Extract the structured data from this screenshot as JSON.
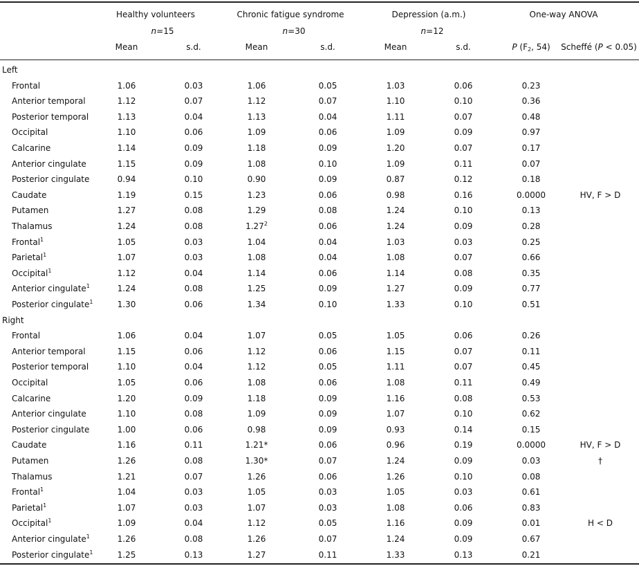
{
  "header": {
    "groups": [
      {
        "title": "Healthy volunteers",
        "n": {
          "symbol": "n",
          "value": "=15"
        }
      },
      {
        "title": "Chronic fatigue syndrome",
        "n": {
          "symbol": "n",
          "value": "=30"
        }
      },
      {
        "title": "Depression (a.m.)",
        "n": {
          "symbol": "n",
          "value": "=12"
        }
      },
      {
        "title": "One-way ANOVA"
      }
    ],
    "columns": [
      "Mean",
      "s.d.",
      "Mean",
      "s.d.",
      "Mean",
      "s.d."
    ],
    "p_column": {
      "symbol": "P",
      "open": " (F",
      "sub": "2",
      "close": ", 54)"
    },
    "scheffe_column": {
      "text": "Scheffé (",
      "symbol": "P",
      "close": " < 0.05)"
    }
  },
  "sections": [
    {
      "label": "Left",
      "rows": [
        {
          "region": "Frontal",
          "cells": [
            "1.06",
            "0.03",
            "1.06",
            "0.05",
            "1.03",
            "0.06",
            "0.23"
          ]
        },
        {
          "region": "Anterior temporal",
          "cells": [
            "1.12",
            "0.07",
            "1.12",
            "0.07",
            "1.10",
            "0.10",
            "0.36"
          ]
        },
        {
          "region": "Posterior temporal",
          "cells": [
            "1.13",
            "0.04",
            "1.13",
            "0.04",
            "1.11",
            "0.07",
            "0.48"
          ]
        },
        {
          "region": "Occipital",
          "cells": [
            "1.10",
            "0.06",
            "1.09",
            "0.06",
            "1.09",
            "0.09",
            "0.97"
          ]
        },
        {
          "region": "Calcarine",
          "cells": [
            "1.14",
            "0.09",
            "1.18",
            "0.09",
            "1.20",
            "0.07",
            "0.17"
          ]
        },
        {
          "region": "Anterior cingulate",
          "cells": [
            "1.15",
            "0.09",
            "1.08",
            "0.10",
            "1.09",
            "0.11",
            "0.07"
          ]
        },
        {
          "region": "Posterior cingulate",
          "cells": [
            "0.94",
            "0.10",
            "0.90",
            "0.09",
            "0.87",
            "0.12",
            "0.18"
          ]
        },
        {
          "region": "Caudate",
          "cells": [
            "1.19",
            "0.15",
            "1.23",
            "0.06",
            "0.98",
            "0.16",
            "0.0000"
          ],
          "scheffe": "HV, F > D"
        },
        {
          "region": "Putamen",
          "cells": [
            "1.27",
            "0.08",
            "1.29",
            "0.08",
            "1.24",
            "0.10",
            "0.13"
          ]
        },
        {
          "region": "Thalamus",
          "cells": [
            "1.24",
            "0.08",
            {
              "text": "1.27",
              "note": "2"
            },
            "0.06",
            "1.24",
            "0.09",
            "0.28"
          ]
        },
        {
          "region": "Frontal",
          "note": "1",
          "cells": [
            "1.05",
            "0.03",
            "1.04",
            "0.04",
            "1.03",
            "0.03",
            "0.25"
          ]
        },
        {
          "region": "Parietal",
          "note": "1",
          "cells": [
            "1.07",
            "0.03",
            "1.08",
            "0.04",
            "1.08",
            "0.07",
            "0.66"
          ]
        },
        {
          "region": "Occipital",
          "note": "1",
          "cells": [
            "1.12",
            "0.04",
            "1.14",
            "0.06",
            "1.14",
            "0.08",
            "0.35"
          ]
        },
        {
          "region": "Anterior cingulate",
          "note": "1",
          "cells": [
            "1.24",
            "0.08",
            "1.25",
            "0.09",
            "1.27",
            "0.09",
            "0.77"
          ]
        },
        {
          "region": "Posterior cingulate",
          "note": "1",
          "cells": [
            "1.30",
            "0.06",
            "1.34",
            "0.10",
            "1.33",
            "0.10",
            "0.51"
          ]
        }
      ]
    },
    {
      "label": "Right",
      "rows": [
        {
          "region": "Frontal",
          "cells": [
            "1.06",
            "0.04",
            "1.07",
            "0.05",
            "1.05",
            "0.06",
            "0.26"
          ]
        },
        {
          "region": "Anterior temporal",
          "cells": [
            "1.15",
            "0.06",
            "1.12",
            "0.06",
            "1.15",
            "0.07",
            "0.11"
          ]
        },
        {
          "region": "Posterior temporal",
          "cells": [
            "1.10",
            "0.04",
            "1.12",
            "0.05",
            "1.11",
            "0.07",
            "0.45"
          ]
        },
        {
          "region": "Occipital",
          "cells": [
            "1.05",
            "0.06",
            "1.08",
            "0.06",
            "1.08",
            "0.11",
            "0.49"
          ]
        },
        {
          "region": "Calcarine",
          "cells": [
            "1.20",
            "0.09",
            "1.18",
            "0.09",
            "1.16",
            "0.08",
            "0.53"
          ]
        },
        {
          "region": "Anterior cingulate",
          "cells": [
            "1.10",
            "0.08",
            "1.09",
            "0.09",
            "1.07",
            "0.10",
            "0.62"
          ]
        },
        {
          "region": "Posterior cingulate",
          "cells": [
            "1.00",
            "0.06",
            "0.98",
            "0.09",
            "0.93",
            "0.14",
            "0.15"
          ]
        },
        {
          "region": "Caudate",
          "cells": [
            "1.16",
            "0.11",
            "1.21*",
            "0.06",
            "0.96",
            "0.19",
            "0.0000"
          ],
          "scheffe": "HV, F > D"
        },
        {
          "region": "Putamen",
          "cells": [
            "1.26",
            "0.08",
            "1.30*",
            "0.07",
            "1.24",
            "0.09",
            "0.03"
          ],
          "scheffe": "†"
        },
        {
          "region": "Thalamus",
          "cells": [
            "1.21",
            "0.07",
            "1.26",
            "0.06",
            "1.26",
            "0.10",
            "0.08"
          ]
        },
        {
          "region": "Frontal",
          "note": "1",
          "cells": [
            "1.04",
            "0.03",
            "1.05",
            "0.03",
            "1.05",
            "0.03",
            "0.61"
          ]
        },
        {
          "region": "Parietal",
          "note": "1",
          "cells": [
            "1.07",
            "0.03",
            "1.07",
            "0.03",
            "1.08",
            "0.06",
            "0.83"
          ]
        },
        {
          "region": "Occipital",
          "note": "1",
          "cells": [
            "1.09",
            "0.04",
            "1.12",
            "0.05",
            "1.16",
            "0.09",
            "0.01"
          ],
          "scheffe": "H < D"
        },
        {
          "region": "Anterior cingulate",
          "note": "1",
          "cells": [
            "1.26",
            "0.08",
            "1.26",
            "0.07",
            "1.24",
            "0.09",
            "0.67"
          ]
        },
        {
          "region": "Posterior cingulate",
          "note": "1",
          "cells": [
            "1.25",
            "0.13",
            "1.27",
            "0.11",
            "1.33",
            "0.13",
            "0.21"
          ]
        }
      ]
    }
  ]
}
